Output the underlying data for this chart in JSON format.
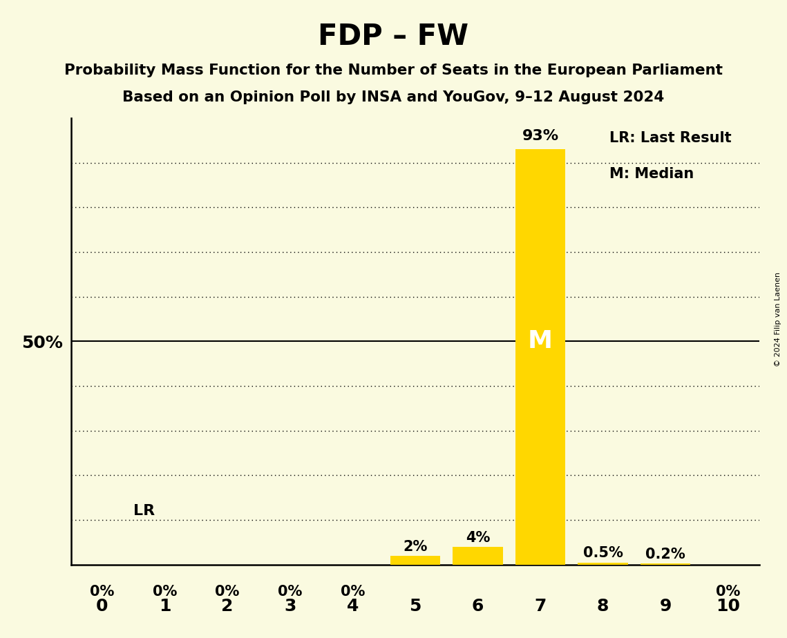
{
  "title": "FDP – FW",
  "subtitle1": "Probability Mass Function for the Number of Seats in the European Parliament",
  "subtitle2": "Based on an Opinion Poll by INSA and YouGov, 9–12 August 2024",
  "copyright": "© 2024 Filip van Laenen",
  "seats": [
    0,
    1,
    2,
    3,
    4,
    5,
    6,
    7,
    8,
    9,
    10
  ],
  "probabilities": [
    0.0,
    0.0,
    0.0,
    0.0,
    0.0,
    2.0,
    4.0,
    93.0,
    0.5,
    0.2,
    0.0
  ],
  "bar_color": "#FFD700",
  "background_color": "#FAFAE0",
  "median_seat": 7,
  "last_result_seat": 7,
  "ylim": [
    0,
    100
  ],
  "label_lr": "LR",
  "label_m": "M",
  "legend_lr": "LR: Last Result",
  "legend_m": "M: Median",
  "percent_labels": [
    "0%",
    "0%",
    "0%",
    "0%",
    "0%",
    "2%",
    "4%",
    "93%",
    "0.5%",
    "0.2%",
    "0%"
  ],
  "grid_levels": [
    10,
    20,
    30,
    40,
    50,
    60,
    70,
    80,
    90
  ]
}
